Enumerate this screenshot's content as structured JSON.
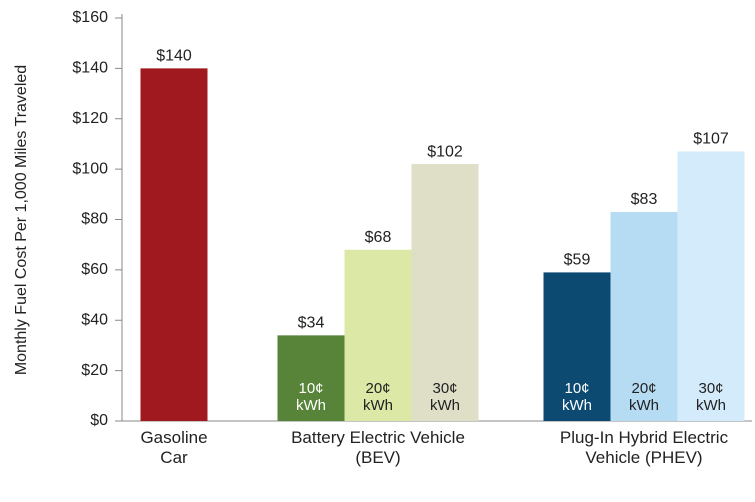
{
  "chart_data": {
    "type": "grouped_bar",
    "y_label": "Monthly Fuel Cost Per 1,000 Miles Traveled",
    "ylim": [
      0,
      160
    ],
    "yticks": [
      {
        "value": 0,
        "label": "$0"
      },
      {
        "value": 20,
        "label": "$20"
      },
      {
        "value": 40,
        "label": "$40"
      },
      {
        "value": 60,
        "label": "$60"
      },
      {
        "value": 80,
        "label": "$80"
      },
      {
        "value": 100,
        "label": "$100"
      },
      {
        "value": 120,
        "label": "$120"
      },
      {
        "value": 140,
        "label": "$140"
      },
      {
        "value": 160,
        "label": "$160"
      }
    ],
    "groups": [
      {
        "name": "Gasoline Car",
        "bars": [
          {
            "value": 140,
            "value_label": "$140",
            "color": "#a0191e"
          }
        ]
      },
      {
        "name": "Battery Electric Vehicle (BEV)",
        "bars": [
          {
            "label": "10¢ kWh",
            "value": 34,
            "value_label": "$34",
            "color": "#578438"
          },
          {
            "label": "20¢ kWh",
            "value": 68,
            "value_label": "$68",
            "color": "#dbe8a6"
          },
          {
            "label": "30¢ kWh",
            "value": 102,
            "value_label": "$102",
            "color": "#dfdec6"
          }
        ]
      },
      {
        "name": "Plug-In Hybrid Electric Vehicle (PHEV)",
        "bars": [
          {
            "label": "10¢ kWh",
            "value": 59,
            "value_label": "$59",
            "color": "#0c4a72"
          },
          {
            "label": "20¢ kWh",
            "value": 83,
            "value_label": "$83",
            "color": "#b6dcf4"
          },
          {
            "label": "30¢ kWh",
            "value": 107,
            "value_label": "$107",
            "color": "#d3ebfb"
          }
        ]
      }
    ]
  }
}
